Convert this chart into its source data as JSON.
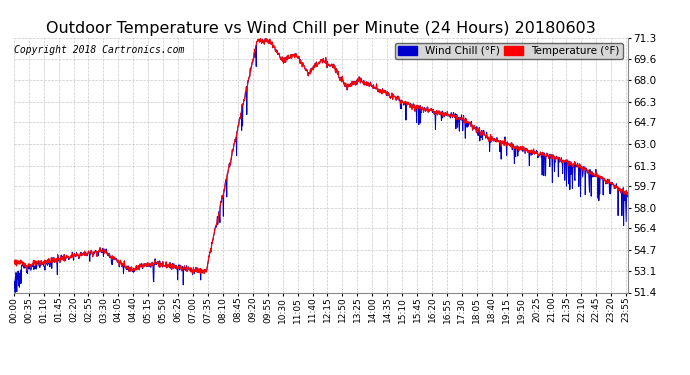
{
  "title": "Outdoor Temperature vs Wind Chill per Minute (24 Hours) 20180603",
  "copyright": "Copyright 2018 Cartronics.com",
  "y_ticks": [
    51.4,
    53.1,
    54.7,
    56.4,
    58.0,
    59.7,
    61.3,
    63.0,
    64.7,
    66.3,
    68.0,
    69.6,
    71.3
  ],
  "ylim": [
    51.4,
    71.3
  ],
  "x_tick_interval_minutes": 35,
  "total_minutes": 1440,
  "wind_chill_color": "#0000cc",
  "temp_color": "#ff0000",
  "background_color": "#ffffff",
  "grid_color": "#bbbbbb",
  "title_fontsize": 11.5,
  "copyright_fontsize": 7.5,
  "legend_fontsize": 8
}
